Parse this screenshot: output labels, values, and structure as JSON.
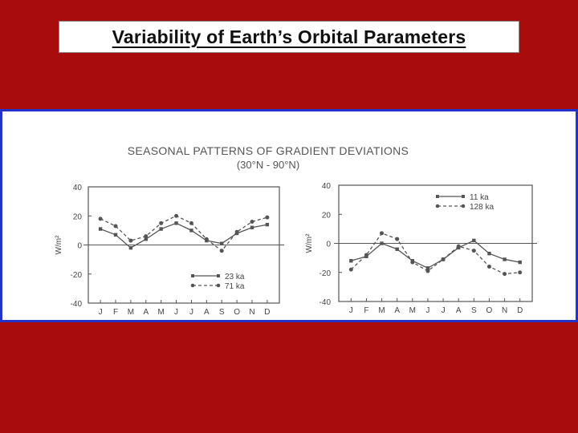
{
  "slide": {
    "title": "Variability of Earth’s Orbital Parameters",
    "background_color": "#a80c0c",
    "panel_border_color": "#2233cc"
  },
  "figure": {
    "heading_line1": "SEASONAL PATTERNS OF GRADIENT DEVIATIONS",
    "heading_line2": "(30°N - 90°N)"
  },
  "chart_data": [
    {
      "type": "line",
      "title": "",
      "xlabel": "",
      "ylabel": "W/m²",
      "ylim": [
        -40,
        40
      ],
      "yticks": [
        40,
        20,
        0,
        -20,
        -40
      ],
      "grid": false,
      "legend_position": "bottom-right",
      "categories": [
        "J",
        "F",
        "M",
        "A",
        "M",
        "J",
        "J",
        "A",
        "S",
        "O",
        "N",
        "D"
      ],
      "series": [
        {
          "name": "23 ka",
          "style": "solid",
          "marker": "square",
          "values": [
            11,
            7,
            -2,
            4,
            11,
            15,
            10,
            3,
            1,
            8,
            12,
            14
          ]
        },
        {
          "name": "71 ka",
          "style": "dashed",
          "marker": "circle",
          "values": [
            18,
            13,
            3,
            6,
            15,
            20,
            15,
            4,
            -4,
            9,
            16,
            19
          ]
        }
      ]
    },
    {
      "type": "line",
      "title": "",
      "xlabel": "",
      "ylabel": "W/m²",
      "ylim": [
        -40,
        40
      ],
      "yticks": [
        40,
        20,
        0,
        -20,
        -40
      ],
      "grid": false,
      "legend_position": "top-right",
      "categories": [
        "J",
        "F",
        "M",
        "A",
        "M",
        "J",
        "J",
        "A",
        "S",
        "O",
        "N",
        "D"
      ],
      "series": [
        {
          "name": "11 ka",
          "style": "solid",
          "marker": "square",
          "values": [
            -12,
            -9,
            0,
            -4,
            -12,
            -17,
            -11,
            -3,
            2,
            -7,
            -11,
            -13
          ]
        },
        {
          "name": "128 ka",
          "style": "dashed",
          "marker": "circle",
          "values": [
            -18,
            -8,
            7,
            3,
            -13,
            -19,
            -11,
            -2,
            -5,
            -16,
            -21,
            -20
          ]
        }
      ]
    }
  ]
}
